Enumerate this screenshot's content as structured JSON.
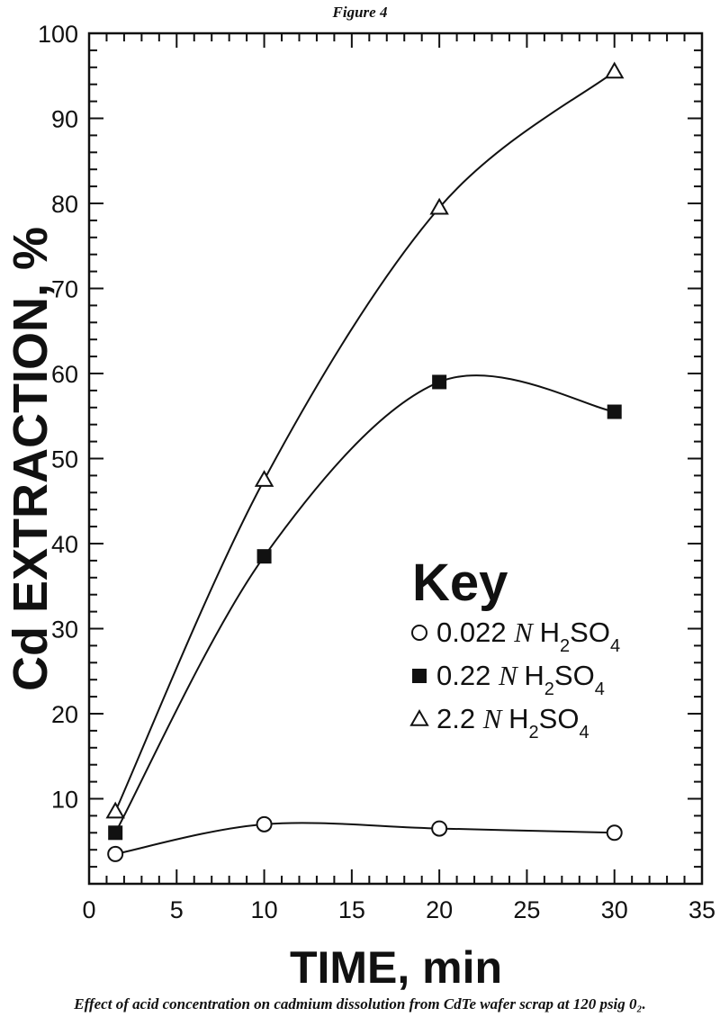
{
  "figure_label": "Figure 4",
  "caption": "Effect of acid concentration on cadmium dissolution from CdTe wafer scrap at 120 psig 0₂.",
  "chart_data": {
    "type": "line",
    "xlabel": "TIME, min",
    "ylabel": "Cd EXTRACTION, %",
    "xlim": [
      0,
      35
    ],
    "ylim": [
      0,
      100
    ],
    "xticks": [
      0,
      5,
      10,
      15,
      20,
      25,
      30,
      35
    ],
    "yticks": [
      10,
      20,
      30,
      40,
      50,
      60,
      70,
      80,
      90,
      100
    ],
    "legend_title": "Key",
    "legend_position": "middle-right",
    "grid": false,
    "series": [
      {
        "name": "0.022 N H2SO4",
        "legend": {
          "prefix": "0.022 ",
          "italic": "N",
          "formula": "H2SO4"
        },
        "marker": "open-circle",
        "x": [
          1.5,
          10,
          20,
          30
        ],
        "y": [
          3.5,
          7,
          6.5,
          6
        ]
      },
      {
        "name": "0.22 N H2SO4",
        "legend": {
          "prefix": "0.22 ",
          "italic": "N",
          "formula": "H2SO4"
        },
        "marker": "filled-square",
        "x": [
          1.5,
          10,
          20,
          30
        ],
        "y": [
          6,
          38.5,
          59,
          55.5
        ]
      },
      {
        "name": "2.2 N H2SO4",
        "legend": {
          "prefix": "2.2 ",
          "italic": "N",
          "formula": "H2SO4"
        },
        "marker": "open-triangle",
        "x": [
          1.5,
          10,
          20,
          30
        ],
        "y": [
          8.5,
          47.5,
          79.5,
          95.5
        ]
      }
    ]
  }
}
